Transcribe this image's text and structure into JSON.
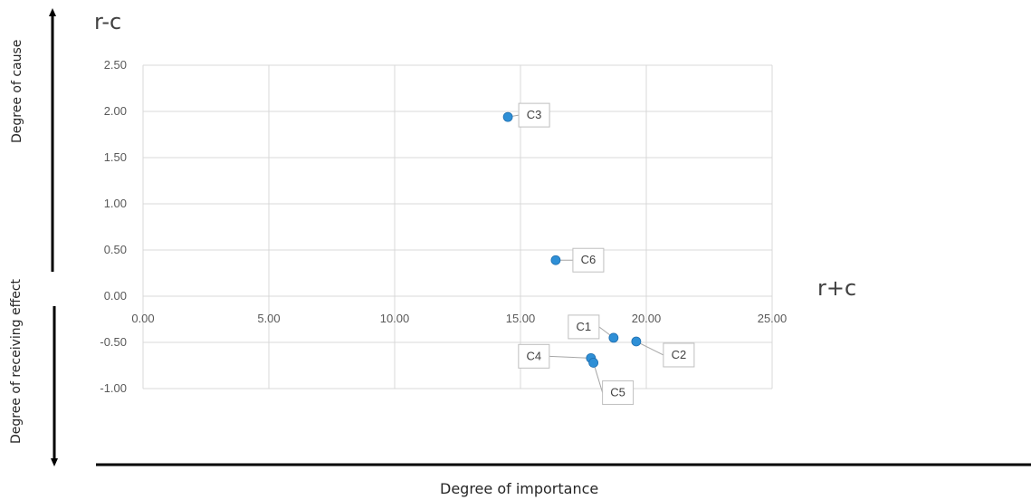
{
  "chart_data": {
    "type": "scatter",
    "xlim": [
      0,
      25
    ],
    "ylim": [
      -1,
      2.5
    ],
    "x_ticks": [
      "0.00",
      "5.00",
      "10.00",
      "15.00",
      "20.00",
      "25.00"
    ],
    "y_ticks": [
      "2.50",
      "2.00",
      "1.50",
      "1.00",
      "0.50",
      "0.00",
      "-0.50",
      "-1.00"
    ],
    "grid": true,
    "points": [
      {
        "label": "C1",
        "x": 18.7,
        "y": -0.45
      },
      {
        "label": "C2",
        "x": 19.6,
        "y": -0.49
      },
      {
        "label": "C3",
        "x": 14.5,
        "y": 1.94
      },
      {
        "label": "C4",
        "x": 17.8,
        "y": -0.67
      },
      {
        "label": "C5",
        "x": 17.9,
        "y": -0.72
      },
      {
        "label": "C6",
        "x": 16.4,
        "y": 0.39
      }
    ],
    "xlabel": "r+c",
    "ylabel": "r-c",
    "outer_xlabel": "Degree of importance",
    "outer_ylabel_upper": "Degree of cause",
    "outer_ylabel_lower": "Degree of receiving effect"
  }
}
